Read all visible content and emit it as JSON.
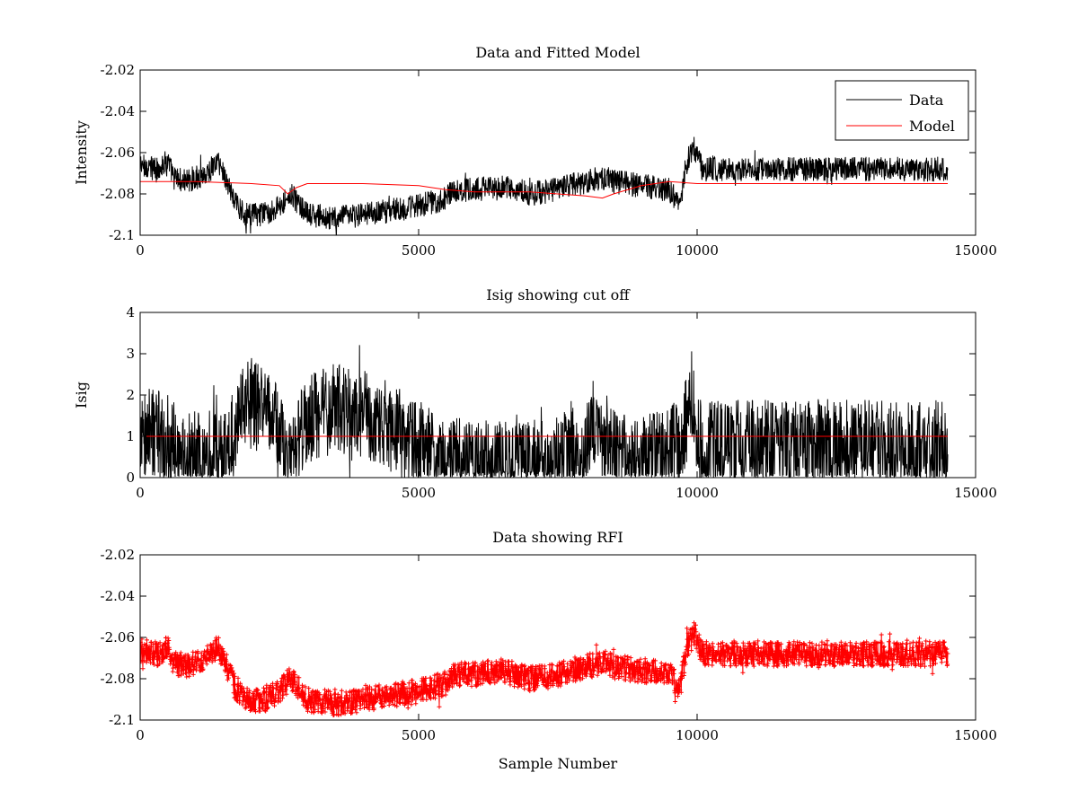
{
  "chart_data": [
    {
      "type": "line",
      "title": "Data and Fitted Model",
      "xlabel": "",
      "ylabel": "Intensity",
      "xlim": [
        0,
        15000
      ],
      "ylim": [
        -2.1,
        -2.02
      ],
      "xticks": [
        0,
        5000,
        10000,
        15000
      ],
      "xtick_labels": [
        "0",
        "5000",
        "10000",
        "15000"
      ],
      "yticks": [
        -2.1,
        -2.08,
        -2.06,
        -2.04,
        -2.02
      ],
      "ytick_labels": [
        "-2.1",
        "-2.08",
        "-2.06",
        "-2.04",
        "-2.02"
      ],
      "grid": false,
      "legend": "top-right",
      "series": [
        {
          "name": "Data",
          "color": "#000000",
          "noise": 0.006,
          "x": [
            0,
            300,
            500,
            600,
            800,
            1000,
            1200,
            1400,
            1500,
            1700,
            1900,
            2200,
            2500,
            2700,
            3000,
            3500,
            4000,
            4500,
            5000,
            5500,
            5600,
            6000,
            6500,
            7000,
            7500,
            7700,
            8000,
            8300,
            8500,
            9000,
            9500,
            9700,
            9800,
            9950,
            10100,
            10500,
            11000,
            12000,
            13000,
            14000,
            14500
          ],
          "y": [
            -2.066,
            -2.068,
            -2.064,
            -2.072,
            -2.074,
            -2.072,
            -2.07,
            -2.064,
            -2.07,
            -2.084,
            -2.09,
            -2.09,
            -2.086,
            -2.08,
            -2.09,
            -2.092,
            -2.09,
            -2.088,
            -2.086,
            -2.082,
            -2.078,
            -2.078,
            -2.076,
            -2.08,
            -2.078,
            -2.076,
            -2.074,
            -2.072,
            -2.074,
            -2.076,
            -2.078,
            -2.084,
            -2.066,
            -2.058,
            -2.068,
            -2.068,
            -2.068,
            -2.068,
            -2.068,
            -2.068,
            -2.068
          ]
        },
        {
          "name": "Model",
          "color": "#ff0000",
          "x": [
            0,
            1000,
            2000,
            2500,
            2650,
            2800,
            3000,
            4000,
            5000,
            5500,
            6000,
            7000,
            7500,
            8000,
            8300,
            8500,
            9000,
            9500,
            10000,
            11000,
            12000,
            13000,
            14500
          ],
          "y": [
            -2.074,
            -2.074,
            -2.075,
            -2.076,
            -2.08,
            -2.077,
            -2.075,
            -2.075,
            -2.076,
            -2.078,
            -2.079,
            -2.079,
            -2.08,
            -2.081,
            -2.082,
            -2.08,
            -2.076,
            -2.074,
            -2.075,
            -2.075,
            -2.075,
            -2.075,
            -2.075
          ]
        }
      ]
    },
    {
      "type": "line",
      "title": "Isig showing cut off",
      "xlabel": "",
      "ylabel": "Isig",
      "xlim": [
        0,
        15000
      ],
      "ylim": [
        0,
        4
      ],
      "xticks": [
        0,
        5000,
        10000,
        15000
      ],
      "xtick_labels": [
        "0",
        "5000",
        "10000",
        "15000"
      ],
      "yticks": [
        0,
        1,
        2,
        3,
        4
      ],
      "ytick_labels": [
        "0",
        "1",
        "2",
        "3",
        "4"
      ],
      "grid": false,
      "legend": "none",
      "series": [
        {
          "color": "#000000",
          "noise": 1.1,
          "x": [
            0,
            300,
            500,
            700,
            900,
            1200,
            1400,
            1500,
            1600,
            1800,
            2000,
            2300,
            2500,
            2700,
            3000,
            3500,
            4000,
            4500,
            4800,
            5200,
            5500,
            6000,
            7000,
            7500,
            8000,
            8200,
            8300,
            8500,
            9000,
            9500,
            9800,
            9900,
            10000,
            10500,
            11000,
            12000,
            13000,
            14000,
            14500
          ],
          "y": [
            1.0,
            1.1,
            0.9,
            0.4,
            0.5,
            0.6,
            1.0,
            0.4,
            0.8,
            1.6,
            1.8,
            1.6,
            1.0,
            0.4,
            1.4,
            1.7,
            1.6,
            1.2,
            1.0,
            0.6,
            0.4,
            0.3,
            0.3,
            0.4,
            0.8,
            1.5,
            0.6,
            0.6,
            0.5,
            0.6,
            1.3,
            2.2,
            0.8,
            0.8,
            0.8,
            0.8,
            0.8,
            0.8,
            0.8
          ]
        },
        {
          "color": "#ff0000",
          "x": [
            0,
            14500
          ],
          "y": [
            1.0,
            1.0
          ]
        }
      ]
    },
    {
      "type": "scatter",
      "title": "Data showing RFI",
      "xlabel": "Sample Number",
      "ylabel": "",
      "xlim": [
        0,
        15000
      ],
      "ylim": [
        -2.1,
        -2.02
      ],
      "xticks": [
        0,
        5000,
        10000,
        15000
      ],
      "xtick_labels": [
        "0",
        "5000",
        "10000",
        "15000"
      ],
      "yticks": [
        -2.1,
        -2.08,
        -2.06,
        -2.04,
        -2.02
      ],
      "ytick_labels": [
        "-2.1",
        "-2.08",
        "-2.06",
        "-2.04",
        "-2.02"
      ],
      "grid": false,
      "legend": "none",
      "series": [
        {
          "color": "#ff0000",
          "marker": "plus",
          "noise": 0.006,
          "x": [
            0,
            300,
            500,
            600,
            800,
            1000,
            1200,
            1400,
            1500,
            1700,
            1900,
            2200,
            2500,
            2700,
            3000,
            3500,
            4000,
            4500,
            5000,
            5500,
            5600,
            6000,
            6500,
            7000,
            7500,
            7700,
            8000,
            8300,
            8500,
            9000,
            9500,
            9700,
            9800,
            9950,
            10100,
            10500,
            11000,
            12000,
            13000,
            14000,
            14500
          ],
          "y": [
            -2.066,
            -2.068,
            -2.064,
            -2.072,
            -2.074,
            -2.072,
            -2.07,
            -2.064,
            -2.07,
            -2.084,
            -2.09,
            -2.09,
            -2.086,
            -2.08,
            -2.09,
            -2.092,
            -2.09,
            -2.088,
            -2.086,
            -2.082,
            -2.078,
            -2.078,
            -2.076,
            -2.08,
            -2.078,
            -2.076,
            -2.074,
            -2.072,
            -2.074,
            -2.076,
            -2.078,
            -2.084,
            -2.066,
            -2.058,
            -2.068,
            -2.068,
            -2.068,
            -2.068,
            -2.068,
            -2.068,
            -2.068
          ]
        }
      ]
    }
  ]
}
